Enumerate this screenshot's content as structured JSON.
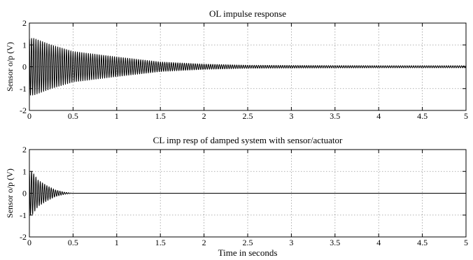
{
  "figure": {
    "xlabel": "Time in seconds"
  },
  "chart_data": [
    {
      "type": "line",
      "title": "OL impulse response",
      "xlabel": "",
      "ylabel": "Sensor o/p (V)",
      "xlim": [
        0,
        5
      ],
      "ylim": [
        -2,
        2
      ],
      "xticks": [
        0,
        0.5,
        1,
        1.5,
        2,
        2.5,
        3,
        3.5,
        4,
        4.5,
        5
      ],
      "yticks": [
        -2,
        -1,
        0,
        1,
        2
      ],
      "xtick_labels": [
        "0",
        "0.5",
        "1",
        "1.5",
        "2",
        "2.5",
        "3",
        "3.5",
        "4",
        "4.5",
        "5"
      ],
      "ytick_labels": [
        "-2",
        "-1",
        "0",
        "1",
        "2"
      ],
      "grid": true,
      "series": [
        {
          "color": "#000000",
          "envelope": {
            "t": [
              0,
              0.05,
              0.25,
              0.5,
              1,
              1.5,
              2,
              2.5,
              3,
              4,
              5
            ],
            "amplitude": [
              1.3,
              1.3,
              1.0,
              0.7,
              0.45,
              0.22,
              0.12,
              0.07,
              0.06,
              0.05,
              0.05
            ]
          },
          "oscillation_frequency_hz": 40
        }
      ]
    },
    {
      "type": "line",
      "title": "CL imp resp of damped system with sensor/actuator",
      "xlabel": "Time in seconds",
      "ylabel": "Sensor o/p (V)",
      "xlim": [
        0,
        5
      ],
      "ylim": [
        -2,
        2
      ],
      "xticks": [
        0,
        0.5,
        1,
        1.5,
        2,
        2.5,
        3,
        3.5,
        4,
        4.5,
        5
      ],
      "yticks": [
        -2,
        -1,
        0,
        1,
        2
      ],
      "xtick_labels": [
        "0",
        "0.5",
        "1",
        "1.5",
        "2",
        "2.5",
        "3",
        "3.5",
        "4",
        "4.5",
        "5"
      ],
      "ytick_labels": [
        "-2",
        "-1",
        "0",
        "1",
        "2"
      ],
      "grid": true,
      "series": [
        {
          "color": "#000000",
          "envelope": {
            "t": [
              0,
              0.03,
              0.1,
              0.2,
              0.3,
              0.4,
              0.5,
              5
            ],
            "amplitude": [
              1.0,
              1.0,
              0.6,
              0.35,
              0.15,
              0.05,
              0.0,
              0.0
            ]
          },
          "oscillation_frequency_hz": 40
        }
      ]
    }
  ]
}
